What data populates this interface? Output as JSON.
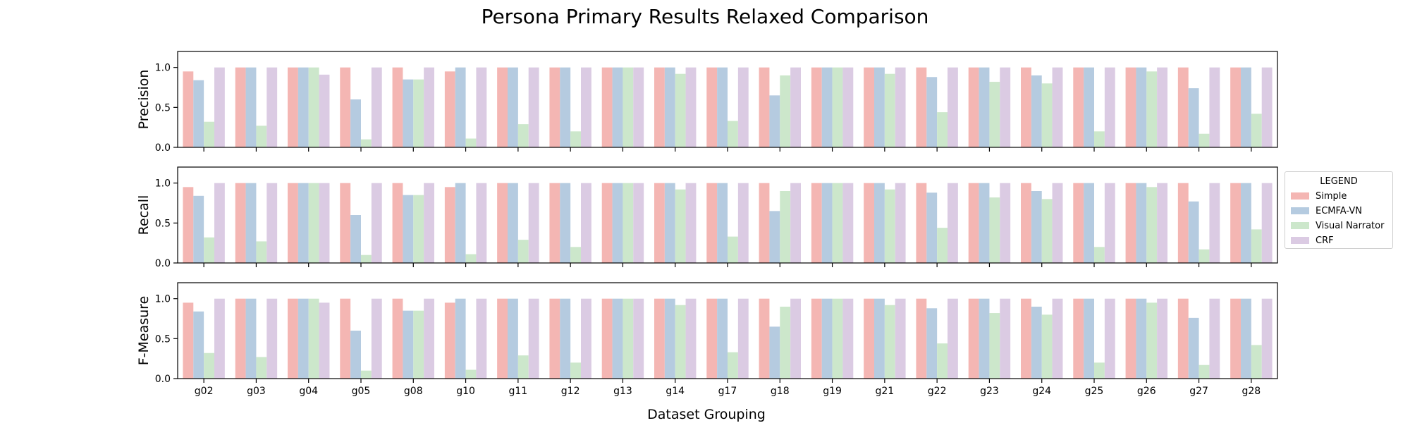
{
  "chart_data": {
    "type": "bar",
    "title": "Persona Primary Results Relaxed Comparison",
    "xlabel": "Dataset Grouping",
    "categories": [
      "g02",
      "g03",
      "g04",
      "g05",
      "g08",
      "g10",
      "g11",
      "g12",
      "g13",
      "g14",
      "g17",
      "g18",
      "g19",
      "g21",
      "g22",
      "g23",
      "g24",
      "g25",
      "g26",
      "g27",
      "g28"
    ],
    "ylim": [
      0,
      1.2
    ],
    "yticks": [
      "0.0",
      "0.5",
      "1.0"
    ],
    "grid": false,
    "legend": {
      "title": "LEGEND",
      "placement": "center-right",
      "items": [
        "Simple",
        "ECMFA-VN",
        "Visual Narrator",
        "CRF"
      ],
      "colors": [
        "#f4b6b3",
        "#b5cbe0",
        "#cce7cb",
        "#dbcbe3"
      ]
    },
    "panels": [
      {
        "ylabel": "Precision",
        "series": [
          {
            "name": "Simple",
            "values": [
              0.95,
              1.0,
              1.0,
              1.0,
              1.0,
              0.95,
              1.0,
              1.0,
              1.0,
              1.0,
              1.0,
              1.0,
              1.0,
              1.0,
              1.0,
              1.0,
              1.0,
              1.0,
              1.0,
              1.0,
              1.0
            ]
          },
          {
            "name": "ECMFA-VN",
            "values": [
              0.84,
              1.0,
              1.0,
              0.6,
              0.85,
              1.0,
              1.0,
              1.0,
              1.0,
              1.0,
              1.0,
              0.65,
              1.0,
              1.0,
              0.88,
              1.0,
              0.9,
              1.0,
              1.0,
              0.74,
              1.0
            ]
          },
          {
            "name": "Visual Narrator",
            "values": [
              0.32,
              0.27,
              1.0,
              0.1,
              0.85,
              0.11,
              0.29,
              0.2,
              1.0,
              0.92,
              0.33,
              0.9,
              1.0,
              0.92,
              0.44,
              0.82,
              0.8,
              0.2,
              0.95,
              0.17,
              0.42
            ]
          },
          {
            "name": "CRF",
            "values": [
              1.0,
              1.0,
              0.91,
              1.0,
              1.0,
              1.0,
              1.0,
              1.0,
              1.0,
              1.0,
              1.0,
              1.0,
              1.0,
              1.0,
              1.0,
              1.0,
              1.0,
              1.0,
              1.0,
              1.0,
              1.0
            ]
          }
        ]
      },
      {
        "ylabel": "Recall",
        "series": [
          {
            "name": "Simple",
            "values": [
              0.95,
              1.0,
              1.0,
              1.0,
              1.0,
              0.95,
              1.0,
              1.0,
              1.0,
              1.0,
              1.0,
              1.0,
              1.0,
              1.0,
              1.0,
              1.0,
              1.0,
              1.0,
              1.0,
              1.0,
              1.0
            ]
          },
          {
            "name": "ECMFA-VN",
            "values": [
              0.84,
              1.0,
              1.0,
              0.6,
              0.85,
              1.0,
              1.0,
              1.0,
              1.0,
              1.0,
              1.0,
              0.65,
              1.0,
              1.0,
              0.88,
              1.0,
              0.9,
              1.0,
              1.0,
              0.77,
              1.0
            ]
          },
          {
            "name": "Visual Narrator",
            "values": [
              0.32,
              0.27,
              1.0,
              0.1,
              0.85,
              0.11,
              0.29,
              0.2,
              1.0,
              0.92,
              0.33,
              0.9,
              1.0,
              0.92,
              0.44,
              0.82,
              0.8,
              0.2,
              0.95,
              0.17,
              0.42
            ]
          },
          {
            "name": "CRF",
            "values": [
              1.0,
              1.0,
              1.0,
              1.0,
              1.0,
              1.0,
              1.0,
              1.0,
              1.0,
              1.0,
              1.0,
              1.0,
              1.0,
              1.0,
              1.0,
              1.0,
              1.0,
              1.0,
              1.0,
              1.0,
              1.0
            ]
          }
        ]
      },
      {
        "ylabel": "F-Measure",
        "series": [
          {
            "name": "Simple",
            "values": [
              0.95,
              1.0,
              1.0,
              1.0,
              1.0,
              0.95,
              1.0,
              1.0,
              1.0,
              1.0,
              1.0,
              1.0,
              1.0,
              1.0,
              1.0,
              1.0,
              1.0,
              1.0,
              1.0,
              1.0,
              1.0
            ]
          },
          {
            "name": "ECMFA-VN",
            "values": [
              0.84,
              1.0,
              1.0,
              0.6,
              0.85,
              1.0,
              1.0,
              1.0,
              1.0,
              1.0,
              1.0,
              0.65,
              1.0,
              1.0,
              0.88,
              1.0,
              0.9,
              1.0,
              1.0,
              0.76,
              1.0
            ]
          },
          {
            "name": "Visual Narrator",
            "values": [
              0.32,
              0.27,
              1.0,
              0.1,
              0.85,
              0.11,
              0.29,
              0.2,
              1.0,
              0.92,
              0.33,
              0.9,
              1.0,
              0.92,
              0.44,
              0.82,
              0.8,
              0.2,
              0.95,
              0.17,
              0.42
            ]
          },
          {
            "name": "CRF",
            "values": [
              1.0,
              1.0,
              0.95,
              1.0,
              1.0,
              1.0,
              1.0,
              1.0,
              1.0,
              1.0,
              1.0,
              1.0,
              1.0,
              1.0,
              1.0,
              1.0,
              1.0,
              1.0,
              1.0,
              1.0,
              1.0
            ]
          }
        ]
      }
    ]
  }
}
